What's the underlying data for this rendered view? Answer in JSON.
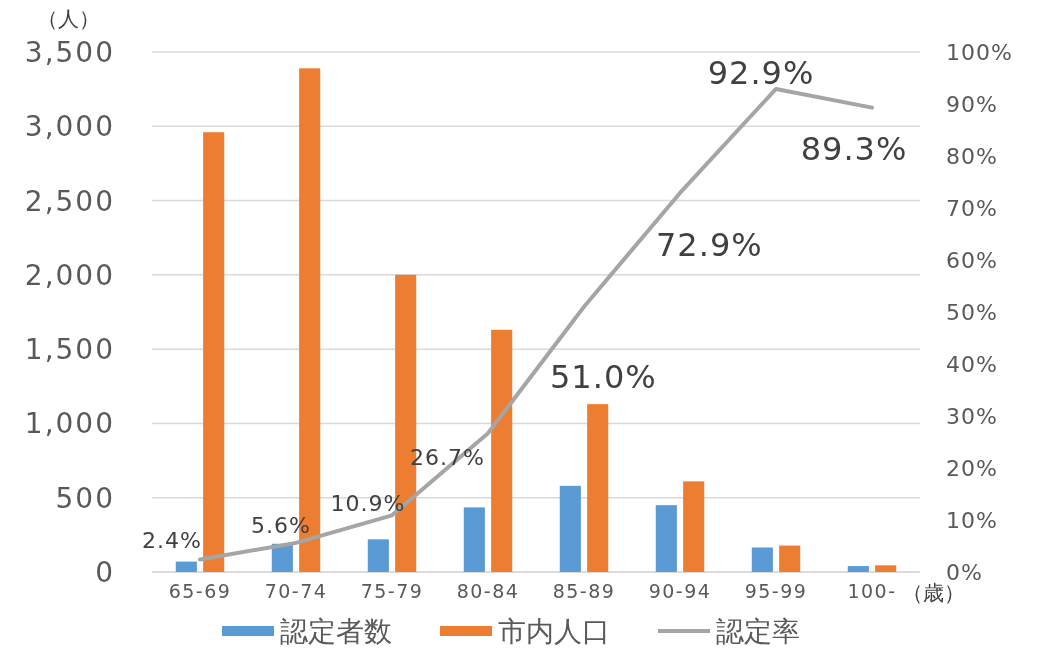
{
  "chart_data": {
    "type": "bar",
    "ylabel": "（人）",
    "xlabel": "（歳）",
    "categories": [
      "65-69",
      "70-74",
      "75-79",
      "80-84",
      "85-89",
      "90-94",
      "95-99",
      "100-"
    ],
    "series": [
      {
        "name": "認定者数",
        "color": "#5b9bd5",
        "values": [
          70,
          190,
          220,
          435,
          580,
          450,
          165,
          40
        ]
      },
      {
        "name": "市内人口",
        "color": "#ed7d31",
        "values": [
          2960,
          3390,
          2000,
          1630,
          1130,
          610,
          178,
          45
        ]
      },
      {
        "name": "認定率",
        "type": "line",
        "axis": "y2",
        "color": "#a5a5a5",
        "values": [
          2.4,
          5.6,
          10.9,
          26.7,
          51.0,
          72.9,
          92.9,
          89.3
        ],
        "value_labels": [
          "2.4%",
          "5.6%",
          "10.9%",
          "26.7%",
          "51.0%",
          "72.9%",
          "92.9%",
          "89.3%"
        ]
      }
    ],
    "ylim": [
      0,
      3500
    ],
    "yticks": [
      0,
      500,
      {
        "value": 1000,
        "label": "1,000"
      },
      {
        "value": 1500,
        "label": "1,500"
      },
      {
        "value": 2000,
        "label": "2,000"
      },
      {
        "value": 2500,
        "label": "2,500"
      },
      {
        "value": 3000,
        "label": "3,000"
      },
      {
        "value": 3500,
        "label": "3,500"
      }
    ],
    "y2lim": [
      0,
      100
    ],
    "y2ticks": [
      {
        "value": 0,
        "label": "0%"
      },
      {
        "value": 10,
        "label": "10%"
      },
      {
        "value": 20,
        "label": "20%"
      },
      {
        "value": 30,
        "label": "30%"
      },
      {
        "value": 40,
        "label": "40%"
      },
      {
        "value": 50,
        "label": "50%"
      },
      {
        "value": 60,
        "label": "60%"
      },
      {
        "value": 70,
        "label": "70%"
      },
      {
        "value": 80,
        "label": "80%"
      },
      {
        "value": 90,
        "label": "90%"
      },
      {
        "value": 100,
        "label": "100%"
      }
    ],
    "grid": "y",
    "legend": "bottom"
  }
}
